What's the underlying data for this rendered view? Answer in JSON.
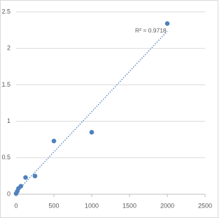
{
  "chart_data": {
    "type": "scatter",
    "annotation": "R² = 0.9718",
    "x": [
      0,
      15.6,
      31.25,
      62.5,
      125,
      250,
      500,
      1000,
      2000
    ],
    "series": [
      {
        "color": "#4f81bd",
        "values": [
          0.01,
          0.04,
          0.08,
          0.11,
          0.23,
          0.25,
          0.73,
          0.85,
          2.34
        ]
      }
    ],
    "trendline": "linear",
    "xlim": [
      0,
      2500
    ],
    "xticks": [
      0,
      500,
      1000,
      1500,
      2000,
      2500
    ],
    "ylim": [
      0,
      2.5
    ],
    "yticks": [
      0,
      0.5,
      1,
      1.5,
      2,
      2.5
    ],
    "grid": true
  }
}
